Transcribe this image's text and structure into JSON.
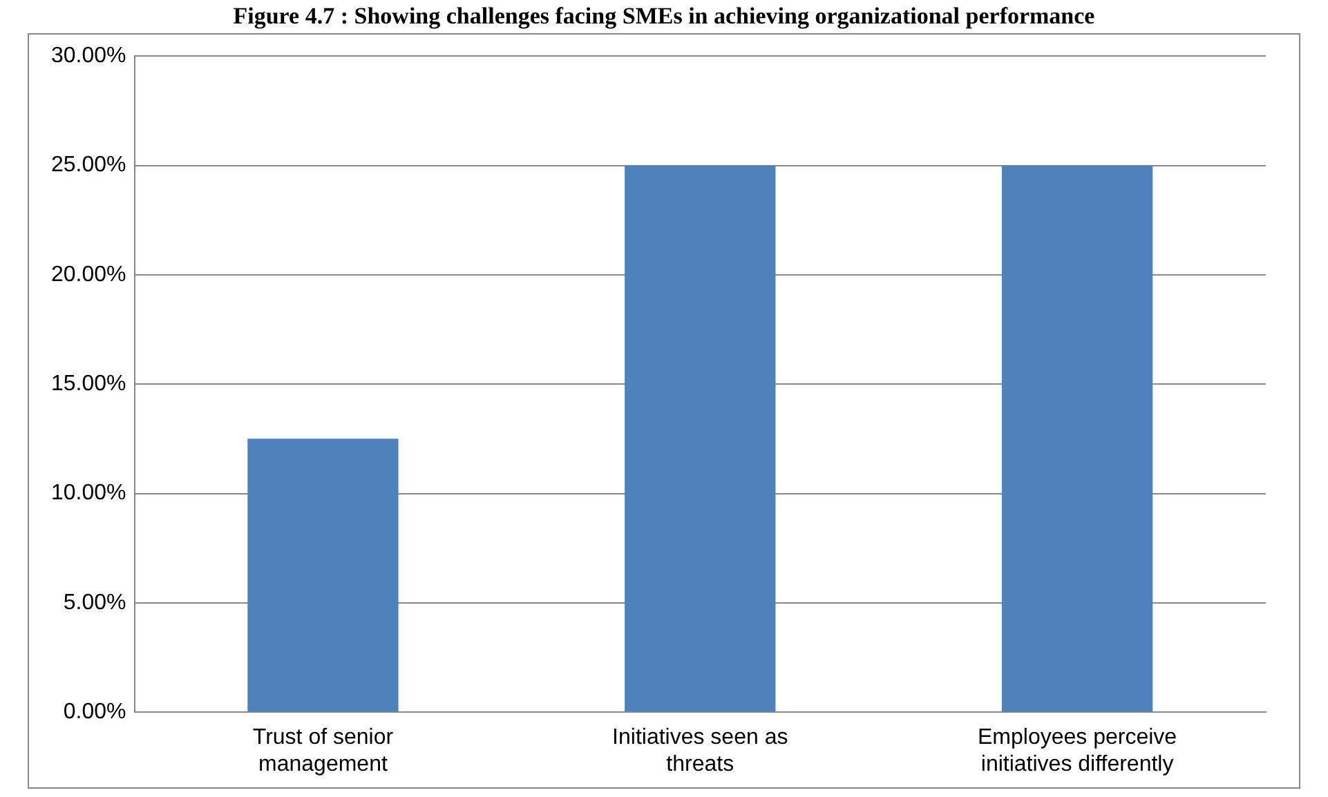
{
  "chart_data": {
    "type": "bar",
    "title": "Figure 4.7 : Showing challenges facing SMEs in achieving organizational performance",
    "categories": [
      "Trust of senior management",
      "Initiatives seen as threats",
      "Employees perceive initiatives differently"
    ],
    "values": [
      12.5,
      25,
      25
    ],
    "color": "#4f81bd",
    "ylim": [
      0,
      30
    ],
    "yticks": [
      {
        "value": 0,
        "label": "0.00%"
      },
      {
        "value": 5,
        "label": "5.00%"
      },
      {
        "value": 10,
        "label": "10.00%"
      },
      {
        "value": 15,
        "label": "15.00%"
      },
      {
        "value": 20,
        "label": "20.00%"
      },
      {
        "value": 25,
        "label": "25.00%"
      },
      {
        "value": 30,
        "label": "30.00%"
      }
    ],
    "grid": "y",
    "legend": false
  }
}
